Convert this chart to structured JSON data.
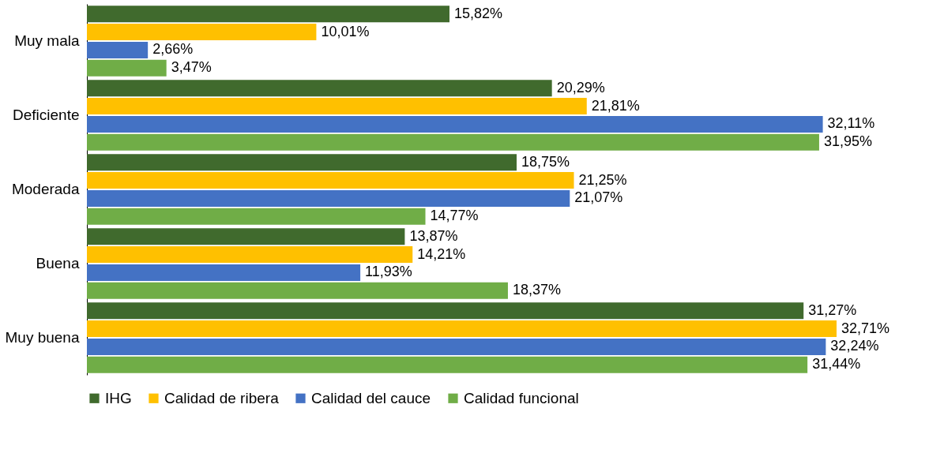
{
  "chart_data": {
    "type": "bar",
    "orientation": "horizontal",
    "categories": [
      "Muy mala",
      "Deficiente",
      "Moderada",
      "Buena",
      "Muy buena"
    ],
    "series": [
      {
        "name": "IHG",
        "color": "#406a2d",
        "values": [
          15.82,
          20.29,
          18.75,
          13.87,
          31.27
        ],
        "value_labels": [
          "15,82%",
          "20,29%",
          "18,75%",
          "13,87%",
          "31,27%"
        ]
      },
      {
        "name": "Calidad de ribera",
        "color": "#ffc000",
        "values": [
          10.01,
          21.81,
          21.25,
          14.21,
          32.71
        ],
        "value_labels": [
          "10,01%",
          "21,81%",
          "21,25%",
          "14,21%",
          "32,71%"
        ]
      },
      {
        "name": "Calidad del cauce",
        "color": "#4472c4",
        "values": [
          2.66,
          32.11,
          21.07,
          11.93,
          32.24
        ],
        "value_labels": [
          "2,66%",
          "32,11%",
          "21,07%",
          "11,93%",
          "32,24%"
        ]
      },
      {
        "name": "Calidad funcional",
        "color": "#70ad47",
        "values": [
          3.47,
          31.95,
          14.77,
          18.37,
          31.44
        ],
        "value_labels": [
          "3,47%",
          "31,95%",
          "14,77%",
          "18,37%",
          "31,44%"
        ]
      }
    ],
    "legend": "bottom",
    "grid": false
  }
}
